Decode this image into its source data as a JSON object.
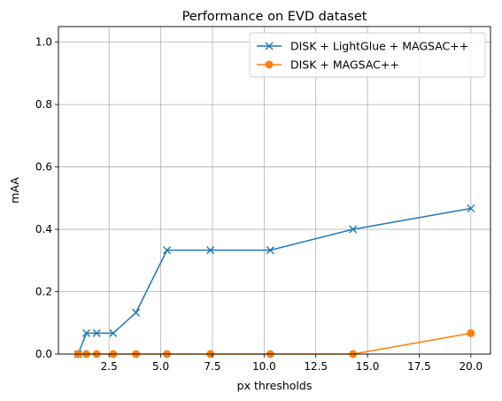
{
  "chart_data": {
    "type": "line",
    "title": "Performance on EVD dataset",
    "xlabel": "px thresholds",
    "ylabel": "mAA",
    "xlim": [
      0.05,
      20.95
    ],
    "ylim": [
      0.0,
      1.05
    ],
    "xticks": [
      2.5,
      5.0,
      7.5,
      10.0,
      12.5,
      15.0,
      17.5,
      20.0
    ],
    "xtick_labels": [
      "2.5",
      "5.0",
      "7.5",
      "10.0",
      "12.5",
      "15.0",
      "17.5",
      "20.0"
    ],
    "yticks": [
      0.0,
      0.2,
      0.4,
      0.6,
      0.8,
      1.0
    ],
    "ytick_labels": [
      "0.0",
      "0.2",
      "0.4",
      "0.6",
      "0.8",
      "1.0"
    ],
    "grid": true,
    "legend_position": "top-right",
    "x": [
      1.0,
      1.4,
      1.9,
      2.7,
      3.8,
      5.3,
      7.4,
      10.3,
      14.3,
      20.0
    ],
    "series": [
      {
        "name": "DISK + LightGlue + MAGSAC++",
        "color": "#1f77b4",
        "marker": "x",
        "values": [
          0.0,
          0.067,
          0.067,
          0.067,
          0.133,
          0.333,
          0.333,
          0.333,
          0.4,
          0.467
        ]
      },
      {
        "name": "DISK + MAGSAC++",
        "color": "#ff7f0e",
        "marker": "o",
        "values": [
          0.0,
          0.0,
          0.0,
          0.0,
          0.0,
          0.0,
          0.0,
          0.0,
          0.0,
          0.067
        ]
      }
    ]
  }
}
